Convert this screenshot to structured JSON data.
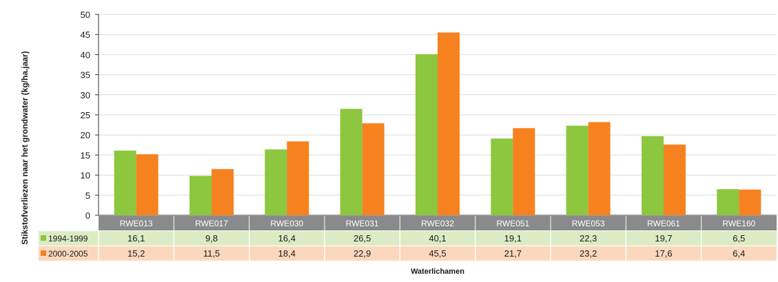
{
  "chart_data": {
    "type": "bar",
    "title": "",
    "xlabel": "Waterlichamen",
    "ylabel": "Stikstofverliezen naar het grondwater (kg/ha.jaar)",
    "categories": [
      "RWE013",
      "RWE017",
      "RWE030",
      "RWE031",
      "RWE032",
      "RWE051",
      "RWE053",
      "RWE061",
      "RWE160"
    ],
    "series": [
      {
        "name": "1994-1999",
        "values": [
          16.1,
          9.8,
          16.4,
          26.5,
          40.1,
          19.1,
          22.3,
          19.7,
          6.5
        ],
        "labels": [
          "16,1",
          "9,8",
          "16,4",
          "26,5",
          "40,1",
          "19,1",
          "22,3",
          "19,7",
          "6,5"
        ],
        "color": "#8dc63f",
        "row_color": "#dcebc3"
      },
      {
        "name": "2000-2005",
        "values": [
          15.2,
          11.5,
          18.4,
          22.9,
          45.5,
          21.7,
          23.2,
          17.6,
          6.4
        ],
        "labels": [
          "15,2",
          "11,5",
          "18,4",
          "22,9",
          "45,5",
          "21,7",
          "23,2",
          "17,6",
          "6,4"
        ],
        "color": "#f5821f",
        "row_color": "#fbd8bd"
      }
    ],
    "ylim": [
      0,
      50
    ],
    "yticks": [
      0,
      5,
      10,
      15,
      20,
      25,
      30,
      35,
      40,
      45,
      50
    ],
    "grid": true,
    "legend": "data-table-left",
    "category_header_color": "#8a8a8c"
  }
}
